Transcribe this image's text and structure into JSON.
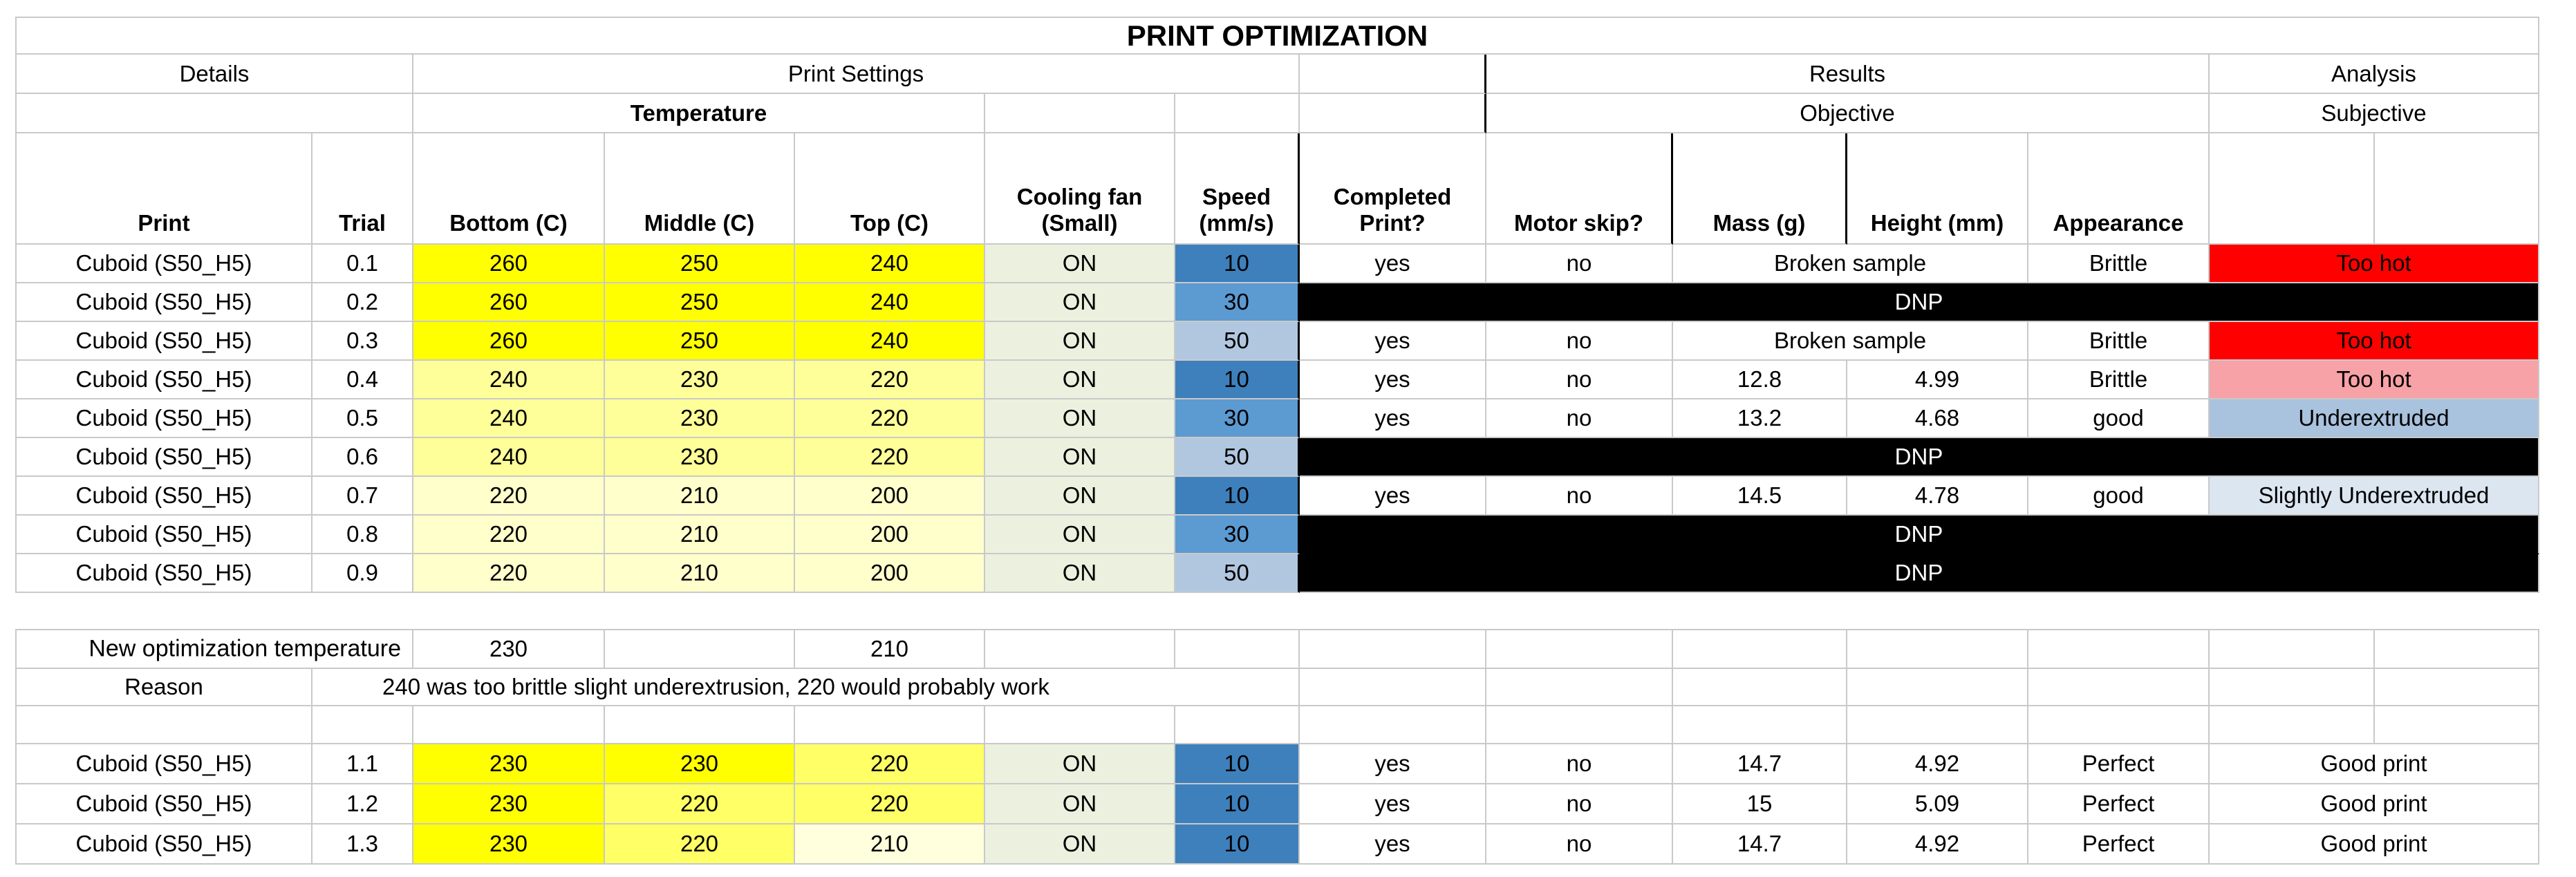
{
  "title": "PRINT OPTIMIZATION",
  "groups": {
    "details": "Details",
    "print_settings": "Print Settings",
    "results": "Results",
    "analysis": "Analysis"
  },
  "subgroups": {
    "temperature": "Temperature",
    "objective": "Objective",
    "subjective": "Subjective"
  },
  "columns": [
    "Print",
    "Trial",
    "Bottom (C)",
    "Middle (C)",
    "Top (C)",
    "Cooling fan\n(Small)",
    "Speed\n(mm/s)",
    "Completed\nPrint?",
    "Motor skip?",
    "Mass (g)",
    "Height (mm)",
    "Appearance"
  ],
  "colors": {
    "bright_yellow": "#FFFF00",
    "pale_yellow": "#FFFF99",
    "faint_yellow": "#FFFFCC",
    "mid_yellow": "#FFFF66",
    "cream_yellow": "#FFFFDD",
    "fan_green": "#EBF1DE",
    "speed10_blue": "#3E80BC",
    "speed30_blue": "#5C9AD2",
    "speed50_blue": "#B0C7DF",
    "hot_red": "#FF0000",
    "hot_pink": "#F6A2A6",
    "under_blue": "#A9C2DD",
    "slight_blue": "#DCE6F1"
  },
  "trials": [
    {
      "print": "Cuboid (S50_H5)",
      "trial": "0.1",
      "temps": [
        "260",
        "250",
        "240"
      ],
      "temp_fills": [
        "y0",
        "y0",
        "y0"
      ],
      "fan": "ON",
      "speed": "10",
      "speed_fill": "s10",
      "dnp": false,
      "completed": "yes",
      "motor_skip": "no",
      "mass_height_merged": "Broken sample",
      "appearance": "Brittle",
      "analysis": "Too hot",
      "analysis_fill": "red"
    },
    {
      "print": "Cuboid (S50_H5)",
      "trial": "0.2",
      "temps": [
        "260",
        "250",
        "240"
      ],
      "temp_fills": [
        "y0",
        "y0",
        "y0"
      ],
      "fan": "ON",
      "speed": "30",
      "speed_fill": "s30",
      "dnp": true,
      "dnp_label": "DNP"
    },
    {
      "print": "Cuboid (S50_H5)",
      "trial": "0.3",
      "temps": [
        "260",
        "250",
        "240"
      ],
      "temp_fills": [
        "y0",
        "y0",
        "y0"
      ],
      "fan": "ON",
      "speed": "50",
      "speed_fill": "s50",
      "dnp": false,
      "completed": "yes",
      "motor_skip": "no",
      "mass_height_merged": "Broken sample",
      "appearance": "Brittle",
      "analysis": "Too hot",
      "analysis_fill": "red"
    },
    {
      "print": "Cuboid (S50_H5)",
      "trial": "0.4",
      "temps": [
        "240",
        "230",
        "220"
      ],
      "temp_fills": [
        "y1",
        "y1",
        "y1"
      ],
      "fan": "ON",
      "speed": "10",
      "speed_fill": "s10",
      "dnp": false,
      "completed": "yes",
      "motor_skip": "no",
      "mass": "12.8",
      "height": "4.99",
      "appearance": "Brittle",
      "analysis": "Too hot",
      "analysis_fill": "pink"
    },
    {
      "print": "Cuboid (S50_H5)",
      "trial": "0.5",
      "temps": [
        "240",
        "230",
        "220"
      ],
      "temp_fills": [
        "y1",
        "y1",
        "y1"
      ],
      "fan": "ON",
      "speed": "30",
      "speed_fill": "s30",
      "dnp": false,
      "completed": "yes",
      "motor_skip": "no",
      "mass": "13.2",
      "height": "4.68",
      "appearance": "good",
      "analysis": "Underextruded",
      "analysis_fill": "ub"
    },
    {
      "print": "Cuboid (S50_H5)",
      "trial": "0.6",
      "temps": [
        "240",
        "230",
        "220"
      ],
      "temp_fills": [
        "y1",
        "y1",
        "y1"
      ],
      "fan": "ON",
      "speed": "50",
      "speed_fill": "s50",
      "dnp": true,
      "dnp_label": "DNP"
    },
    {
      "print": "Cuboid (S50_H5)",
      "trial": "0.7",
      "temps": [
        "220",
        "210",
        "200"
      ],
      "temp_fills": [
        "y2",
        "y2",
        "y2"
      ],
      "fan": "ON",
      "speed": "10",
      "speed_fill": "s10",
      "dnp": false,
      "completed": "yes",
      "motor_skip": "no",
      "mass": "14.5",
      "height": "4.78",
      "appearance": "good",
      "analysis": "Slightly Underextruded",
      "analysis_fill": "sub"
    },
    {
      "print": "Cuboid (S50_H5)",
      "trial": "0.8",
      "temps": [
        "220",
        "210",
        "200"
      ],
      "temp_fills": [
        "y2",
        "y2",
        "y2"
      ],
      "fan": "ON",
      "speed": "30",
      "speed_fill": "s30",
      "dnp": true,
      "dnp_label": "DNP",
      "dnp_join": true
    },
    {
      "print": "Cuboid (S50_H5)",
      "trial": "0.9",
      "temps": [
        "220",
        "210",
        "200"
      ],
      "temp_fills": [
        "y2",
        "y2",
        "y2"
      ],
      "fan": "ON",
      "speed": "50",
      "speed_fill": "s50",
      "dnp": true,
      "dnp_label": "DNP"
    }
  ],
  "notes": {
    "new_opt_label": "New optimization temperature",
    "new_opt_bottom": "230",
    "new_opt_top": "210",
    "reason_label": "Reason",
    "reason_a": "240 was too brittle",
    "reason_b": "slight underextrusion, 220 would probably work"
  },
  "trials2": [
    {
      "print": "Cuboid (S50_H5)",
      "trial": "1.1",
      "temps": [
        "230",
        "230",
        "220"
      ],
      "temp_fills": [
        "y0",
        "y0",
        "y3"
      ],
      "fan": "ON",
      "speed": "10",
      "speed_fill": "s10",
      "dnp": false,
      "completed": "yes",
      "motor_skip": "no",
      "mass": "14.7",
      "height": "4.92",
      "appearance": "Perfect",
      "analysis": "Good print",
      "analysis_fill": null
    },
    {
      "print": "Cuboid (S50_H5)",
      "trial": "1.2",
      "temps": [
        "230",
        "220",
        "220"
      ],
      "temp_fills": [
        "y0",
        "y3",
        "y3"
      ],
      "fan": "ON",
      "speed": "10",
      "speed_fill": "s10",
      "dnp": false,
      "completed": "yes",
      "motor_skip": "no",
      "mass": "15",
      "height": "5.09",
      "appearance": "Perfect",
      "analysis": "Good print",
      "analysis_fill": null
    },
    {
      "print": "Cuboid (S50_H5)",
      "trial": "1.3",
      "temps": [
        "230",
        "220",
        "210"
      ],
      "temp_fills": [
        "y0",
        "y3",
        "y4"
      ],
      "fan": "ON",
      "speed": "10",
      "speed_fill": "s10",
      "dnp": false,
      "completed": "yes",
      "motor_skip": "no",
      "mass": "14.7",
      "height": "4.92",
      "appearance": "Perfect",
      "analysis": "Good print",
      "analysis_fill": null
    }
  ]
}
